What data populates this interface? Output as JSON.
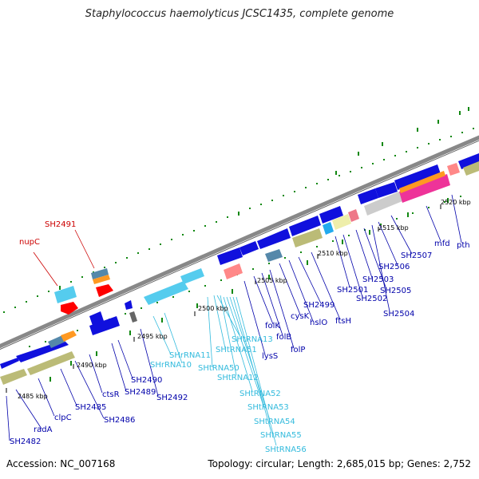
{
  "title": "Staphylococcus haemolyticus JCSC1435, complete genome",
  "accession": "Accession: NC_007168",
  "summary": "Topology: circular; Length: 2,685,015 bp; Genes: 2,752",
  "colors": {
    "forward_gene": "#1010dd",
    "rna_gene": "#55ccee",
    "highlight_gene": "#ff0000",
    "label_dark": "#0000aa",
    "label_light": "#33bbdd",
    "label_red": "#cc0000",
    "backbone": "#888888",
    "tick": "#118811"
  },
  "scale_labels": [
    "2485 kbp",
    "2490 kbp",
    "2495 kbp",
    "2500 kbp",
    "2505 kbp",
    "2510 kbp",
    "2515 kbp",
    "2520 kbp"
  ],
  "gene_labels": {
    "dark": [
      "SH2482",
      "radA",
      "clpC",
      "SH2485",
      "SH2486",
      "ctsR",
      "SH2489",
      "SH2490",
      "SH2492",
      "lysS",
      "folK",
      "folB",
      "folP",
      "cysK",
      "hslO",
      "SH2499",
      "ftsH",
      "SH2501",
      "SH2502",
      "SH2503",
      "SH2505",
      "SH2504",
      "SH2506",
      "SH2507",
      "mfd",
      "pth"
    ],
    "light": [
      "SHrRNA11",
      "SHrRNA10",
      "SHtRNA50",
      "SHtRNA51",
      "SHtRNA13",
      "SHtRNA12",
      "SHtRNA52",
      "SHtRNA53",
      "SHtRNA54",
      "SHtRNA55",
      "SHtRNA56"
    ],
    "red": [
      "SH2491",
      "nupC"
    ]
  }
}
